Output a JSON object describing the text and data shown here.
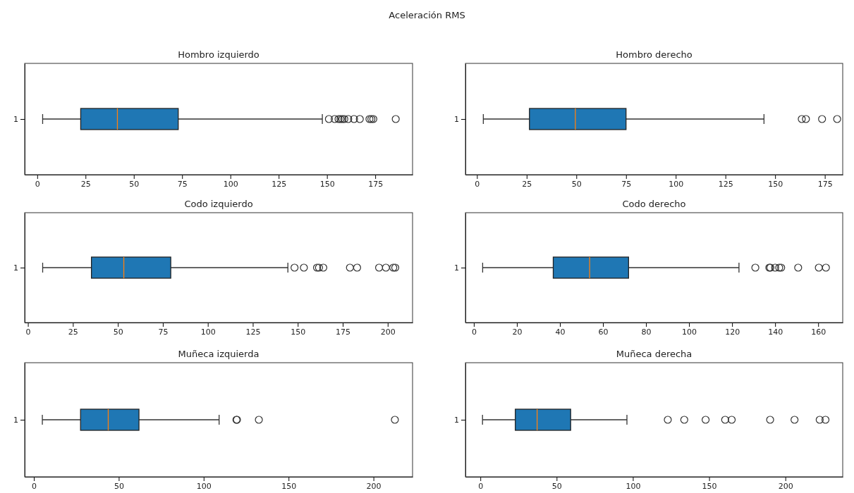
{
  "chart_data": [
    {
      "type": "box",
      "title": "Hombro izquierdo",
      "annotations": [
        "Aceleración RMS"
      ],
      "orientation": "horizontal",
      "categories": [
        "1"
      ],
      "color": "#1f77b4",
      "xlim": [
        -6.5,
        194.3
      ],
      "xticks": [
        0,
        25,
        50,
        75,
        100,
        125,
        150,
        175
      ],
      "boxes": [
        {
          "low": 2.8,
          "q1": 22.5,
          "median": 41.5,
          "q3": 73,
          "high": 147.6,
          "outliers": [
            151,
            154,
            156,
            157,
            158,
            159,
            161,
            164,
            167,
            172,
            173,
            174,
            185.6
          ]
        }
      ]
    },
    {
      "type": "box",
      "title": "Hombro derecho",
      "orientation": "horizontal",
      "categories": [
        "1"
      ],
      "color": "#1f77b4",
      "xlim": [
        -5.8,
        184
      ],
      "xticks": [
        0,
        25,
        50,
        75,
        100,
        125,
        150,
        175
      ],
      "boxes": [
        {
          "low": 3.2,
          "q1": 26.4,
          "median": 49.5,
          "q3": 75,
          "high": 144.4,
          "outliers": [
            163.4,
            165.5,
            173.6,
            181.2
          ]
        }
      ]
    },
    {
      "type": "box",
      "title": "Codo  izquierdo",
      "orientation": "horizontal",
      "categories": [
        "1"
      ],
      "color": "#1f77b4",
      "xlim": [
        -1.8,
        213.8
      ],
      "xticks": [
        0,
        25,
        50,
        75,
        100,
        125,
        150,
        175,
        200
      ],
      "boxes": [
        {
          "low": 8.2,
          "q1": 35.3,
          "median": 53.3,
          "q3": 79.4,
          "high": 144.5,
          "outliers": [
            148.2,
            153.4,
            160.7,
            161.8,
            164.2,
            179,
            183,
            195.2,
            199,
            203.1,
            204.2
          ]
        }
      ]
    },
    {
      "type": "box",
      "title": "Codo derecho",
      "orientation": "horizontal",
      "categories": [
        "1"
      ],
      "color": "#1f77b4",
      "xlim": [
        -3.9,
        171.4
      ],
      "xticks": [
        0,
        20,
        40,
        60,
        80,
        100,
        120,
        140,
        160
      ],
      "boxes": [
        {
          "low": 4.1,
          "q1": 36.9,
          "median": 53.8,
          "q3": 71.9,
          "high": 123.2,
          "outliers": [
            130.8,
            137.3,
            137.8,
            140,
            141.9,
            142.8,
            150.7,
            160.3,
            163.6
          ]
        }
      ]
    },
    {
      "type": "box",
      "title": "Muñeca  izquierda",
      "orientation": "horizontal",
      "categories": [
        "1"
      ],
      "color": "#1f77b4",
      "xlim": [
        -5.4,
        223
      ],
      "xticks": [
        0,
        50,
        100,
        150,
        200
      ],
      "boxes": [
        {
          "low": 5,
          "q1": 27.5,
          "median": 43.8,
          "q3": 61.9,
          "high": 109.1,
          "outliers": [
            119.3,
            119.6,
            132.5,
            212.6
          ]
        }
      ]
    },
    {
      "type": "box",
      "title": "Muñeca derecha",
      "orientation": "horizontal",
      "categories": [
        "1"
      ],
      "color": "#1f77b4",
      "xlim": [
        -9.8,
        237.6
      ],
      "xticks": [
        0,
        50,
        100,
        150,
        200
      ],
      "boxes": [
        {
          "low": 1.4,
          "q1": 22.9,
          "median": 37.2,
          "q3": 59.2,
          "high": 96.1,
          "outliers": [
            122.9,
            133.7,
            147.7,
            160.5,
            164.8,
            190,
            206,
            222.5,
            226.3
          ]
        }
      ]
    }
  ]
}
